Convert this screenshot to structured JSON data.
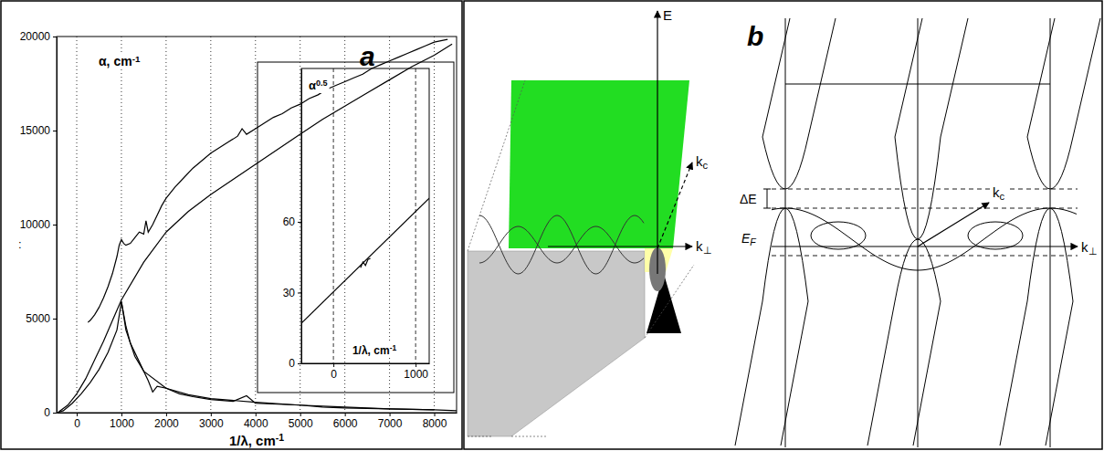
{
  "chart_data": [
    {
      "type": "line",
      "title": "a",
      "ylabel": {
        "base": "α, cm",
        "sup": "-1"
      },
      "xlabel": {
        "base": "1/λ, cm",
        "sup": "-1"
      },
      "annotations": [
        ":"
      ],
      "xlim": [
        -450,
        8500
      ],
      "xticks": [
        0,
        1000,
        2000,
        3000,
        4000,
        5000,
        6000,
        7000,
        8000
      ],
      "ylim": [
        0,
        20000
      ],
      "yticks": [
        0,
        5000,
        10000,
        15000,
        20000
      ],
      "grid": "x",
      "series": [
        {
          "color": "#000000",
          "x": [
            250,
            300,
            400,
            500,
            600,
            700,
            800,
            900,
            950,
            1000,
            1050,
            1100,
            1200,
            1300,
            1400,
            1500,
            1550,
            1600,
            1700,
            1800,
            1900,
            2000,
            2200,
            2400,
            2600,
            2800,
            3000,
            3200,
            3400,
            3600,
            3700,
            3800,
            4000,
            4200,
            4400,
            4600,
            4800,
            5000,
            5200,
            5400,
            5600,
            5800,
            6000,
            6200,
            6400,
            6600,
            6800,
            7000,
            7200,
            7400,
            7600,
            7800,
            8000,
            8200,
            8300
          ],
          "values": [
            4800,
            4900,
            5200,
            5600,
            6100,
            6700,
            7400,
            8300,
            8900,
            9200,
            9000,
            8900,
            9000,
            9300,
            9600,
            9500,
            10200,
            9600,
            10000,
            10500,
            11000,
            11400,
            12000,
            12500,
            13000,
            13400,
            13800,
            14100,
            14400,
            14700,
            15100,
            14800,
            15100,
            15400,
            15700,
            15900,
            16200,
            16400,
            16700,
            16900,
            17200,
            17400,
            17600,
            17800,
            18000,
            18300,
            18500,
            18700,
            18900,
            19100,
            19300,
            19500,
            19700,
            19800,
            19850
          ]
        },
        {
          "color": "#000000",
          "x": [
            -400,
            -200,
            0,
            200,
            400,
            600,
            800,
            1000,
            1500,
            2000,
            2500,
            3000,
            3500,
            4000,
            4500,
            5000,
            5500,
            6000,
            6500,
            7000,
            7500,
            8000,
            8400
          ],
          "values": [
            50,
            400,
            1000,
            1800,
            2800,
            3800,
            4900,
            6000,
            8000,
            9600,
            10700,
            11600,
            12400,
            13200,
            14000,
            14800,
            15600,
            16300,
            17000,
            17700,
            18400,
            19000,
            19600
          ]
        },
        {
          "color": "#000000",
          "x": [
            -450,
            -300,
            -100,
            100,
            300,
            500,
            700,
            900,
            1000,
            1100,
            1300,
            1500,
            2000,
            2500,
            3000,
            4000,
            5000,
            6000,
            7000,
            8000,
            8500
          ],
          "values": [
            0,
            100,
            500,
            1000,
            1600,
            2300,
            3200,
            4400,
            5900,
            4400,
            3000,
            2200,
            1300,
            950,
            750,
            550,
            400,
            300,
            200,
            150,
            100
          ]
        },
        {
          "color": "#000000",
          "x": [
            1000,
            1100,
            1200,
            1400,
            1600,
            1700,
            1800,
            2000,
            2300,
            2600,
            3000,
            3500,
            3800,
            4000,
            4500,
            5000,
            5500,
            6000,
            7000,
            8000
          ],
          "values": [
            5900,
            4600,
            3700,
            2700,
            1700,
            1100,
            1400,
            1300,
            1000,
            850,
            700,
            600,
            900,
            500,
            450,
            400,
            300,
            250,
            200,
            150
          ]
        }
      ]
    },
    {
      "type": "line",
      "ylabel": {
        "base": "α",
        "sup": "0.5"
      },
      "xlabel": {
        "base": "1/λ, cm",
        "sup": "-1"
      },
      "xlim": [
        -390,
        1165
      ],
      "xticks": [
        0,
        1000
      ],
      "ylim": [
        0,
        125
      ],
      "yticks": [
        0,
        30,
        60
      ],
      "grid": "x",
      "series": [
        {
          "color": "#000000",
          "x": [
            -390,
            1165
          ],
          "values": [
            17,
            70
          ]
        },
        {
          "color": "#000000",
          "x": [
            330,
            360,
            390,
            420,
            450
          ],
          "values": [
            40.5,
            43,
            41.5,
            44,
            44.5
          ]
        }
      ]
    }
  ],
  "diagram": {
    "label": "b",
    "left_axes": {
      "energy": "E",
      "k_c": {
        "base": "k",
        "sub": "c"
      },
      "k_perp": {
        "base": "k",
        "sub": "⊥"
      }
    },
    "right_axes": {
      "gap": "ΔE",
      "fermi": {
        "base": "E",
        "sub": "F"
      },
      "k_c": {
        "base": "k",
        "sub": "c"
      },
      "k_perp": {
        "base": "k",
        "sub": "⊥"
      }
    }
  }
}
